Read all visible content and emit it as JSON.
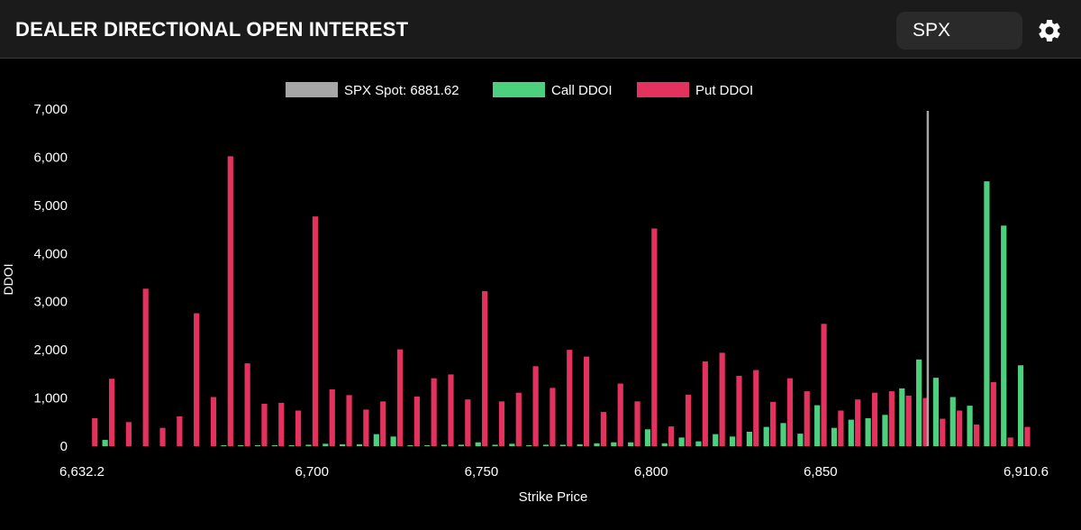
{
  "header": {
    "title": "DEALER DIRECTIONAL OPEN INTEREST",
    "symbol_value": "SPX",
    "settings_icon": "gear-icon"
  },
  "colors": {
    "background": "#000000",
    "header_bg": "#1b1b1b",
    "call": "#4cd07d",
    "put": "#e3325e",
    "spot": "#a6a6a6",
    "text": "#ffffff"
  },
  "chart_data": {
    "type": "bar",
    "title": "",
    "xlabel": "Strike Price",
    "ylabel": "DDOI",
    "xlim": [
      6632.2,
      6910.6
    ],
    "ylim": [
      0,
      7000
    ],
    "x_ticks": [
      {
        "value": 6632.2,
        "label": "6,632.2"
      },
      {
        "value": 6700,
        "label": "6,700"
      },
      {
        "value": 6750,
        "label": "6,750"
      },
      {
        "value": 6800,
        "label": "6,800"
      },
      {
        "value": 6850,
        "label": "6,850"
      },
      {
        "value": 6910.6,
        "label": "6,910.6"
      }
    ],
    "y_ticks": [
      {
        "value": 0,
        "label": "0"
      },
      {
        "value": 1000,
        "label": "1,000"
      },
      {
        "value": 2000,
        "label": "2,000"
      },
      {
        "value": 3000,
        "label": "3,000"
      },
      {
        "value": 4000,
        "label": "4,000"
      },
      {
        "value": 5000,
        "label": "5,000"
      },
      {
        "value": 6000,
        "label": "6,000"
      },
      {
        "value": 7000,
        "label": "7,000"
      }
    ],
    "spot": {
      "label": "SPX Spot: 6881.62",
      "value": 6881.62
    },
    "legend_position": "top-center",
    "grid": false,
    "strikes": [
      6635,
      6640,
      6645,
      6650,
      6655,
      6660,
      6665,
      6670,
      6675,
      6680,
      6685,
      6690,
      6695,
      6700,
      6705,
      6710,
      6715,
      6720,
      6725,
      6730,
      6735,
      6740,
      6745,
      6750,
      6755,
      6760,
      6765,
      6770,
      6775,
      6780,
      6785,
      6790,
      6795,
      6800,
      6805,
      6810,
      6815,
      6820,
      6825,
      6830,
      6835,
      6840,
      6845,
      6850,
      6855,
      6860,
      6865,
      6870,
      6875,
      6880,
      6885,
      6890,
      6895,
      6900,
      6905,
      6910
    ],
    "series": [
      {
        "name": "Call DDOI",
        "values": [
          0,
          130,
          0,
          0,
          0,
          0,
          0,
          0,
          20,
          20,
          20,
          20,
          20,
          30,
          50,
          40,
          40,
          250,
          200,
          20,
          20,
          30,
          30,
          80,
          30,
          50,
          20,
          30,
          30,
          40,
          60,
          80,
          80,
          350,
          60,
          180,
          100,
          250,
          200,
          300,
          400,
          480,
          260,
          850,
          380,
          550,
          580,
          650,
          1200,
          1800,
          1420,
          1020,
          840,
          5500,
          4580,
          1680
        ]
      },
      {
        "name": "Put DDOI",
        "values": [
          580,
          1400,
          500,
          3270,
          380,
          620,
          2760,
          1020,
          6020,
          1720,
          880,
          900,
          740,
          4770,
          1180,
          1060,
          760,
          930,
          2010,
          1030,
          1410,
          1490,
          970,
          3220,
          930,
          1110,
          1660,
          1210,
          2000,
          1860,
          710,
          1300,
          930,
          4520,
          410,
          1070,
          1760,
          1940,
          1460,
          1580,
          920,
          1410,
          1140,
          2540,
          740,
          970,
          1110,
          1140,
          1050,
          1000,
          570,
          740,
          450,
          1330,
          180,
          400
        ]
      }
    ]
  }
}
